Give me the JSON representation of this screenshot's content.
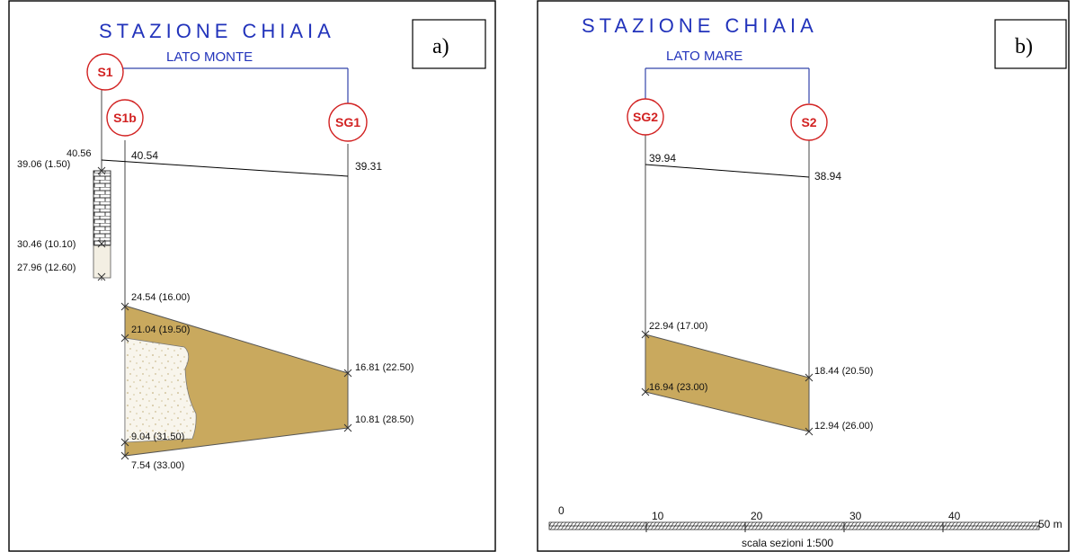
{
  "panel_a": {
    "title": "STAZIONE CHIAIA",
    "subtitle": "LATO MONTE",
    "tag": "a)",
    "boreholes": {
      "s1": "S1",
      "s1b": "S1b",
      "sg1": "SG1"
    },
    "labels": {
      "s1_top": "40.56",
      "s1_depth1": "39.06 (1.50)",
      "s1_depth2": "30.46 (10.10)",
      "s1_depth3": "27.96 (12.60)",
      "s1b_top": "40.54",
      "s1b_d1": "24.54 (16.00)",
      "s1b_d2": "21.04 (19.50)",
      "s1b_d3": "9.04 (31.50)",
      "s1b_d4": "7.54 (33.00)",
      "sg1_top": "39.31",
      "sg1_d1": "16.81 (22.50)",
      "sg1_d2": "10.81 (28.50)"
    }
  },
  "panel_b": {
    "title": "STAZIONE CHIAIA",
    "subtitle": "LATO MARE",
    "tag": "b)",
    "boreholes": {
      "sg2": "SG2",
      "s2": "S2"
    },
    "labels": {
      "sg2_top": "39.94",
      "sg2_d1": "22.94 (17.00)",
      "sg2_d2": "16.94 (23.00)",
      "s2_top": "38.94",
      "s2_d1": "18.44 (20.50)",
      "s2_d2": "12.94 (26.00)"
    },
    "scale": {
      "ticks": [
        "0",
        "10",
        "20",
        "30",
        "40",
        "50 m"
      ],
      "caption": "scala sezioni 1:500"
    }
  }
}
